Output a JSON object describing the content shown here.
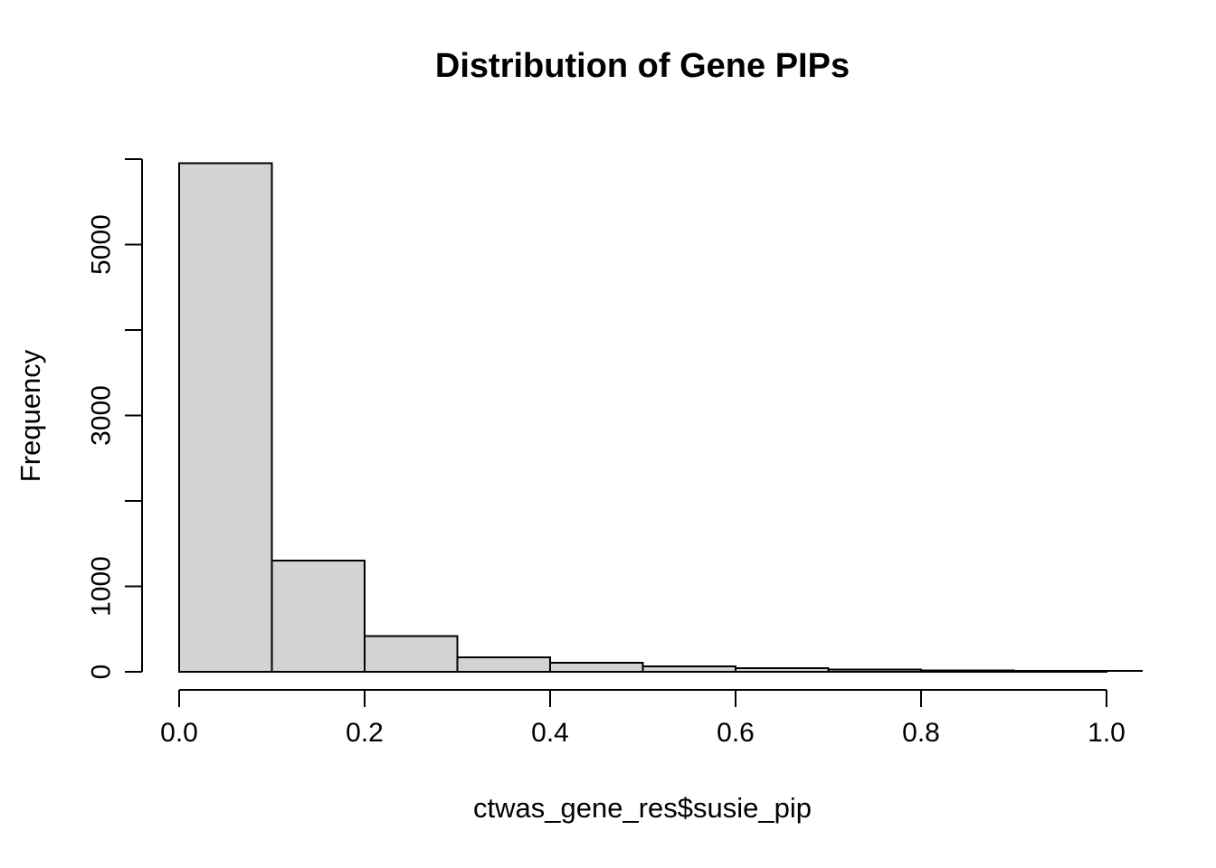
{
  "page": {
    "background_color": "#ffffff"
  },
  "chart_data": {
    "type": "bar",
    "subtype": "histogram",
    "title": "Distribution of Gene PIPs",
    "xlabel": "ctwas_gene_res$susie_pip",
    "ylabel": "Frequency",
    "bin_breaks": [
      0.0,
      0.1,
      0.2,
      0.3,
      0.4,
      0.5,
      0.6,
      0.7,
      0.8,
      0.9,
      1.0
    ],
    "counts": [
      5950,
      1300,
      420,
      170,
      105,
      65,
      40,
      25,
      15,
      12
    ],
    "xlim": [
      0.0,
      1.0
    ],
    "ylim": [
      0,
      6000
    ],
    "x_ticks": {
      "values": [
        0.0,
        0.2,
        0.4,
        0.6,
        0.8,
        1.0
      ],
      "labels": [
        "0.0",
        "0.2",
        "0.4",
        "0.6",
        "0.8",
        "1.0"
      ]
    },
    "y_ticks": {
      "values": [
        0,
        1000,
        2000,
        3000,
        4000,
        5000,
        6000
      ],
      "labels": [
        "0",
        "1000",
        "",
        "3000",
        "",
        "5000",
        ""
      ]
    },
    "grid": false,
    "legend": "none",
    "bar_fill_color": "#d3d3d3",
    "bar_border_color": "#000000",
    "axis_color": "#000000",
    "text_color": "#000000"
  }
}
